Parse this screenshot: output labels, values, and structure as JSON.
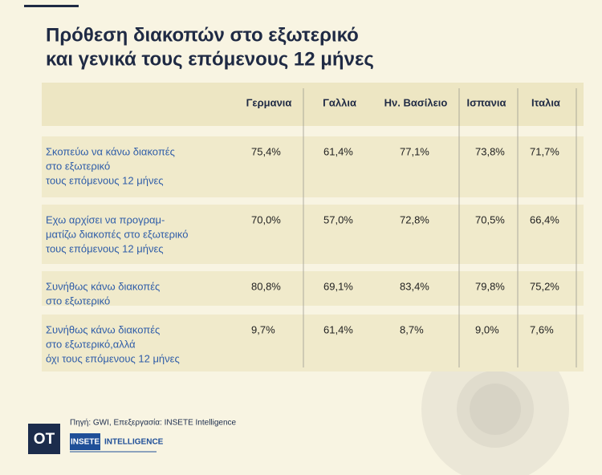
{
  "title": [
    "Πρόθεση διακοπών στο εξωτερικό",
    "και γενικά τους επόμενους 12 μήνες"
  ],
  "table": {
    "columns": [
      "Γερμανια",
      "Γαλλια",
      "Ην. Βασίλειο",
      "Ισπανια",
      "Ιταλια"
    ],
    "rows": [
      {
        "label": [
          "Σκοπεύω να κάνω διακοπές",
          "στο εξωτερικό",
          "τους επόμενους 12 μήνες"
        ],
        "cells": [
          "75,4%",
          "61,4%",
          "77,1%",
          "73,8%",
          "71,7%"
        ]
      },
      {
        "label": [
          "Εχω αρχίσει να προγραμ-",
          "ματίζω διακοπές στο εξωτερικό",
          "τους επόμενους 12 μήνες"
        ],
        "cells": [
          "70,0%",
          "57,0%",
          "72,8%",
          "70,5%",
          "66,4%"
        ]
      },
      {
        "label": [
          "Συνήθως κάνω διακοπές",
          "στο εξωτερικό"
        ],
        "cells": [
          "80,8%",
          "69,1%",
          "83,4%",
          "79,8%",
          "75,2%"
        ]
      },
      {
        "label": [
          "Συνήθως κάνω διακοπές",
          "στο εξωτερικό,αλλά",
          "όχι τους επόμενους 12 μήνες"
        ],
        "cells": [
          "9,7%",
          "61,4%",
          "8,7%",
          "9,0%",
          "7,6%"
        ]
      }
    ]
  },
  "footer": {
    "logo": "OT",
    "source": "Πηγή: GWI,  Επεξεργασία: INSETE Intelligence",
    "brand": "INSETE",
    "brand_suffix": "INTELLIGENCE"
  }
}
